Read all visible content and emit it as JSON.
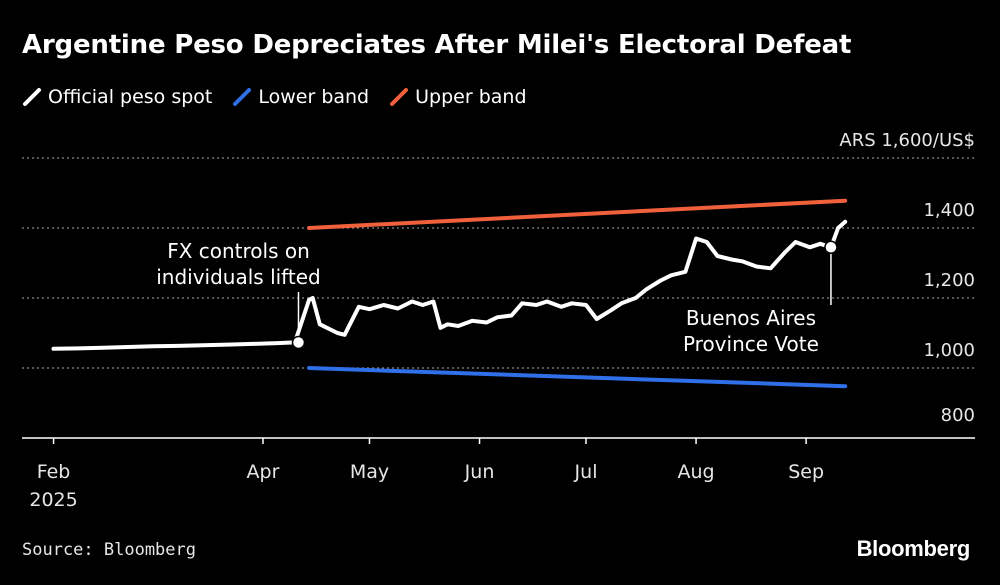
{
  "title": "Argentine Peso Depreciates After Milei's Electoral Defeat",
  "legend": [
    {
      "label": "Official peso spot",
      "color": "#ffffff"
    },
    {
      "label": "Lower band",
      "color": "#2f6fe8"
    },
    {
      "label": "Upper band",
      "color": "#f0603a"
    }
  ],
  "source": "Source: Bloomberg",
  "brand": "Bloomberg",
  "chart_data": {
    "type": "line",
    "ylabel_unit": "ARS 1,600/US$",
    "ylim": [
      800,
      1600
    ],
    "y_ticks": [
      {
        "value": 1600,
        "label": "ARS 1,600/US$"
      },
      {
        "value": 1400,
        "label": "1,400"
      },
      {
        "value": 1200,
        "label": "1,200"
      },
      {
        "value": 1000,
        "label": "1,000"
      },
      {
        "value": 800,
        "label": "800"
      }
    ],
    "xlim": [
      "2025-01-31",
      "2025-09-19"
    ],
    "x_ticks": [
      {
        "date": "2025-02-01",
        "label": "Feb",
        "sublabel": "2025"
      },
      {
        "date": "2025-04-01",
        "label": "Apr",
        "sublabel": ""
      },
      {
        "date": "2025-05-01",
        "label": "May",
        "sublabel": ""
      },
      {
        "date": "2025-06-01",
        "label": "Jun",
        "sublabel": ""
      },
      {
        "date": "2025-07-01",
        "label": "Jul",
        "sublabel": ""
      },
      {
        "date": "2025-08-01",
        "label": "Aug",
        "sublabel": ""
      },
      {
        "date": "2025-09-01",
        "label": "Sep",
        "sublabel": ""
      }
    ],
    "series": [
      {
        "name": "Official peso spot",
        "color": "#ffffff",
        "points": [
          [
            "2025-02-01",
            1055
          ],
          [
            "2025-02-08",
            1056
          ],
          [
            "2025-02-15",
            1058
          ],
          [
            "2025-02-22",
            1060
          ],
          [
            "2025-03-01",
            1062
          ],
          [
            "2025-03-08",
            1063
          ],
          [
            "2025-03-15",
            1065
          ],
          [
            "2025-03-22",
            1067
          ],
          [
            "2025-03-29",
            1069
          ],
          [
            "2025-04-05",
            1071
          ],
          [
            "2025-04-10",
            1073
          ],
          [
            "2025-04-14",
            1195
          ],
          [
            "2025-04-15",
            1200
          ],
          [
            "2025-04-17",
            1125
          ],
          [
            "2025-04-22",
            1100
          ],
          [
            "2025-04-24",
            1095
          ],
          [
            "2025-04-28",
            1175
          ],
          [
            "2025-05-01",
            1168
          ],
          [
            "2025-05-05",
            1180
          ],
          [
            "2025-05-09",
            1170
          ],
          [
            "2025-05-13",
            1190
          ],
          [
            "2025-05-16",
            1180
          ],
          [
            "2025-05-19",
            1190
          ],
          [
            "2025-05-21",
            1115
          ],
          [
            "2025-05-23",
            1125
          ],
          [
            "2025-05-26",
            1120
          ],
          [
            "2025-05-30",
            1135
          ],
          [
            "2025-06-03",
            1130
          ],
          [
            "2025-06-06",
            1145
          ],
          [
            "2025-06-10",
            1150
          ],
          [
            "2025-06-13",
            1185
          ],
          [
            "2025-06-17",
            1180
          ],
          [
            "2025-06-20",
            1190
          ],
          [
            "2025-06-24",
            1175
          ],
          [
            "2025-06-27",
            1185
          ],
          [
            "2025-07-01",
            1180
          ],
          [
            "2025-07-04",
            1140
          ],
          [
            "2025-07-08",
            1165
          ],
          [
            "2025-07-11",
            1185
          ],
          [
            "2025-07-15",
            1200
          ],
          [
            "2025-07-18",
            1225
          ],
          [
            "2025-07-22",
            1250
          ],
          [
            "2025-07-25",
            1265
          ],
          [
            "2025-07-29",
            1275
          ],
          [
            "2025-08-01",
            1370
          ],
          [
            "2025-08-04",
            1360
          ],
          [
            "2025-08-07",
            1320
          ],
          [
            "2025-08-11",
            1310
          ],
          [
            "2025-08-14",
            1305
          ],
          [
            "2025-08-18",
            1290
          ],
          [
            "2025-08-22",
            1285
          ],
          [
            "2025-08-26",
            1330
          ],
          [
            "2025-08-29",
            1360
          ],
          [
            "2025-09-02",
            1345
          ],
          [
            "2025-09-05",
            1355
          ],
          [
            "2025-09-08",
            1345
          ],
          [
            "2025-09-10",
            1400
          ],
          [
            "2025-09-12",
            1418
          ]
        ]
      },
      {
        "name": "Lower band",
        "color": "#2f6fe8",
        "points": [
          [
            "2025-04-14",
            1000
          ],
          [
            "2025-09-12",
            948
          ]
        ]
      },
      {
        "name": "Upper band",
        "color": "#f0603a",
        "points": [
          [
            "2025-04-14",
            1400
          ],
          [
            "2025-09-12",
            1478
          ]
        ]
      }
    ],
    "annotations": [
      {
        "lines": [
          "FX controls on",
          "individuals lifted"
        ],
        "date": "2025-04-11",
        "value": 1073
      },
      {
        "lines": [
          "Buenos Aires",
          "Province Vote"
        ],
        "date": "2025-09-08",
        "value": 1345
      }
    ],
    "grid": true,
    "legend_position": "top-left"
  }
}
